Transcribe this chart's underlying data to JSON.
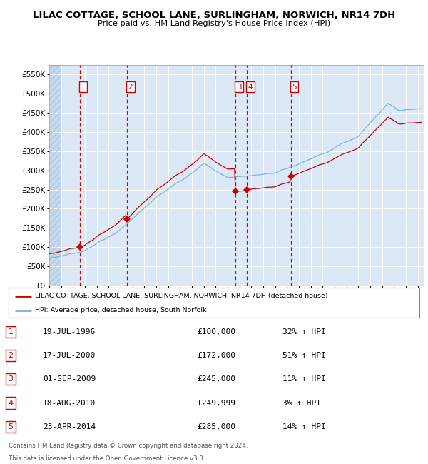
{
  "title1": "LILAC COTTAGE, SCHOOL LANE, SURLINGHAM, NORWICH, NR14 7DH",
  "title2": "Price paid vs. HM Land Registry's House Price Index (HPI)",
  "ylabel_values": [
    0,
    50000,
    100000,
    150000,
    200000,
    250000,
    300000,
    350000,
    400000,
    450000,
    500000,
    550000
  ],
  "ylim": [
    0,
    575000
  ],
  "xlim_start": 1994.0,
  "xlim_end": 2025.5,
  "hpi_color": "#7bafd4",
  "price_color": "#cc0000",
  "background_plot": "#dce8f5",
  "grid_color": "#ffffff",
  "sale_marker_color": "#cc0000",
  "dashed_line_color": "#cc0000",
  "purchases": [
    {
      "num": 1,
      "date_num": 1996.55,
      "price": 100000,
      "label": "19-JUL-1996",
      "price_str": "£100,000",
      "hpi_str": "32% ↑ HPI"
    },
    {
      "num": 2,
      "date_num": 2000.54,
      "price": 172000,
      "label": "17-JUL-2000",
      "price_str": "£172,000",
      "hpi_str": "51% ↑ HPI"
    },
    {
      "num": 3,
      "date_num": 2009.67,
      "price": 245000,
      "label": "01-SEP-2009",
      "price_str": "£245,000",
      "hpi_str": "11% ↑ HPI"
    },
    {
      "num": 4,
      "date_num": 2010.63,
      "price": 249999,
      "label": "18-AUG-2010",
      "price_str": "£249,999",
      "hpi_str": "3% ↑ HPI"
    },
    {
      "num": 5,
      "date_num": 2014.31,
      "price": 285000,
      "label": "23-APR-2014",
      "price_str": "£285,000",
      "hpi_str": "14% ↑ HPI"
    }
  ],
  "legend_line1": "LILAC COTTAGE, SCHOOL LANE, SURLINGHAM, NORWICH, NR14 7DH (detached house)",
  "legend_line2": "HPI: Average price, detached house, South Norfolk",
  "footer1": "Contains HM Land Registry data © Crown copyright and database right 2024.",
  "footer2": "This data is licensed under the Open Government Licence v3.0."
}
